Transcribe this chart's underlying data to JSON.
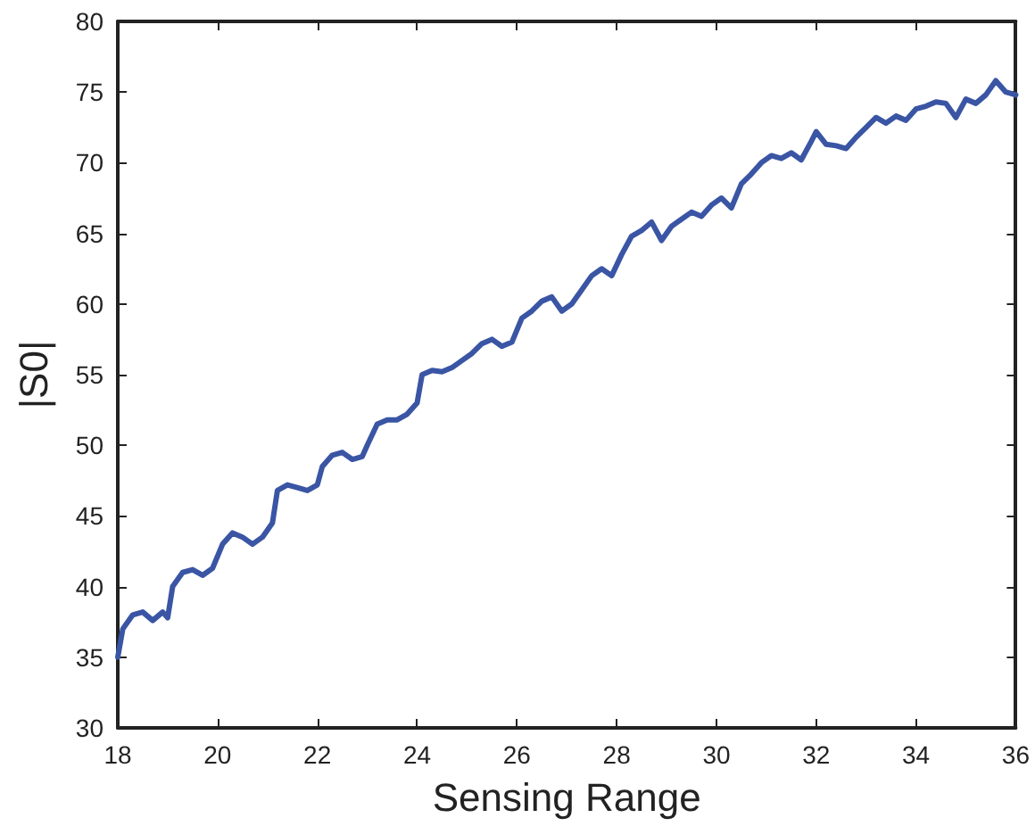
{
  "chart_data": {
    "type": "line",
    "xlabel": "Sensing Range",
    "ylabel": "|S0|",
    "xlim": [
      18,
      36
    ],
    "xticks": [
      18,
      20,
      22,
      24,
      26,
      28,
      30,
      32,
      34,
      36
    ],
    "ylim": [
      30,
      80
    ],
    "yticks": [
      30,
      35,
      40,
      45,
      50,
      55,
      60,
      65,
      70,
      75,
      80
    ],
    "grid": false,
    "marker": "none",
    "line_style": "solid",
    "series": [
      {
        "color": "#3a55a4",
        "x": [
          18.0,
          18.1,
          18.3,
          18.5,
          18.7,
          18.9,
          19.0,
          19.1,
          19.3,
          19.5,
          19.7,
          19.9,
          20.1,
          20.3,
          20.5,
          20.7,
          20.9,
          21.1,
          21.2,
          21.4,
          21.6,
          21.8,
          22.0,
          22.1,
          22.3,
          22.5,
          22.7,
          22.9,
          23.0,
          23.2,
          23.4,
          23.6,
          23.8,
          24.0,
          24.1,
          24.3,
          24.5,
          24.7,
          24.9,
          25.1,
          25.3,
          25.5,
          25.7,
          25.9,
          26.1,
          26.3,
          26.5,
          26.7,
          26.9,
          27.1,
          27.3,
          27.5,
          27.7,
          27.9,
          28.1,
          28.3,
          28.5,
          28.7,
          28.9,
          29.1,
          29.3,
          29.5,
          29.7,
          29.9,
          30.1,
          30.3,
          30.5,
          30.7,
          30.9,
          31.1,
          31.3,
          31.5,
          31.7,
          31.9,
          32.0,
          32.2,
          32.4,
          32.6,
          32.8,
          33.0,
          33.2,
          33.4,
          33.6,
          33.8,
          34.0,
          34.2,
          34.4,
          34.6,
          34.8,
          35.0,
          35.2,
          35.4,
          35.6,
          35.8,
          36.0
        ],
        "values": [
          35,
          37,
          38,
          38.2,
          37.6,
          38.2,
          37.8,
          40,
          41,
          41.2,
          40.8,
          41.3,
          43,
          43.8,
          43.5,
          43,
          43.5,
          44.5,
          46.8,
          47.2,
          47,
          46.8,
          47.2,
          48.5,
          49.3,
          49.5,
          49,
          49.2,
          50,
          51.5,
          51.8,
          51.8,
          52.2,
          53,
          55,
          55.3,
          55.2,
          55.5,
          56,
          56.5,
          57.2,
          57.5,
          57,
          57.3,
          59,
          59.5,
          60.2,
          60.5,
          59.5,
          60,
          61,
          62,
          62.5,
          62,
          63.5,
          64.8,
          65.2,
          65.8,
          64.5,
          65.5,
          66,
          66.5,
          66.2,
          67,
          67.5,
          66.8,
          68.5,
          69.2,
          70,
          70.5,
          70.3,
          70.7,
          70.2,
          71.5,
          72.2,
          71.3,
          71.2,
          71,
          71.8,
          72.5,
          73.2,
          72.8,
          73.3,
          73,
          73.8,
          74,
          74.3,
          74.2,
          73.2,
          74.5,
          74.2,
          74.8,
          75.8,
          75,
          74.8
        ]
      }
    ]
  }
}
